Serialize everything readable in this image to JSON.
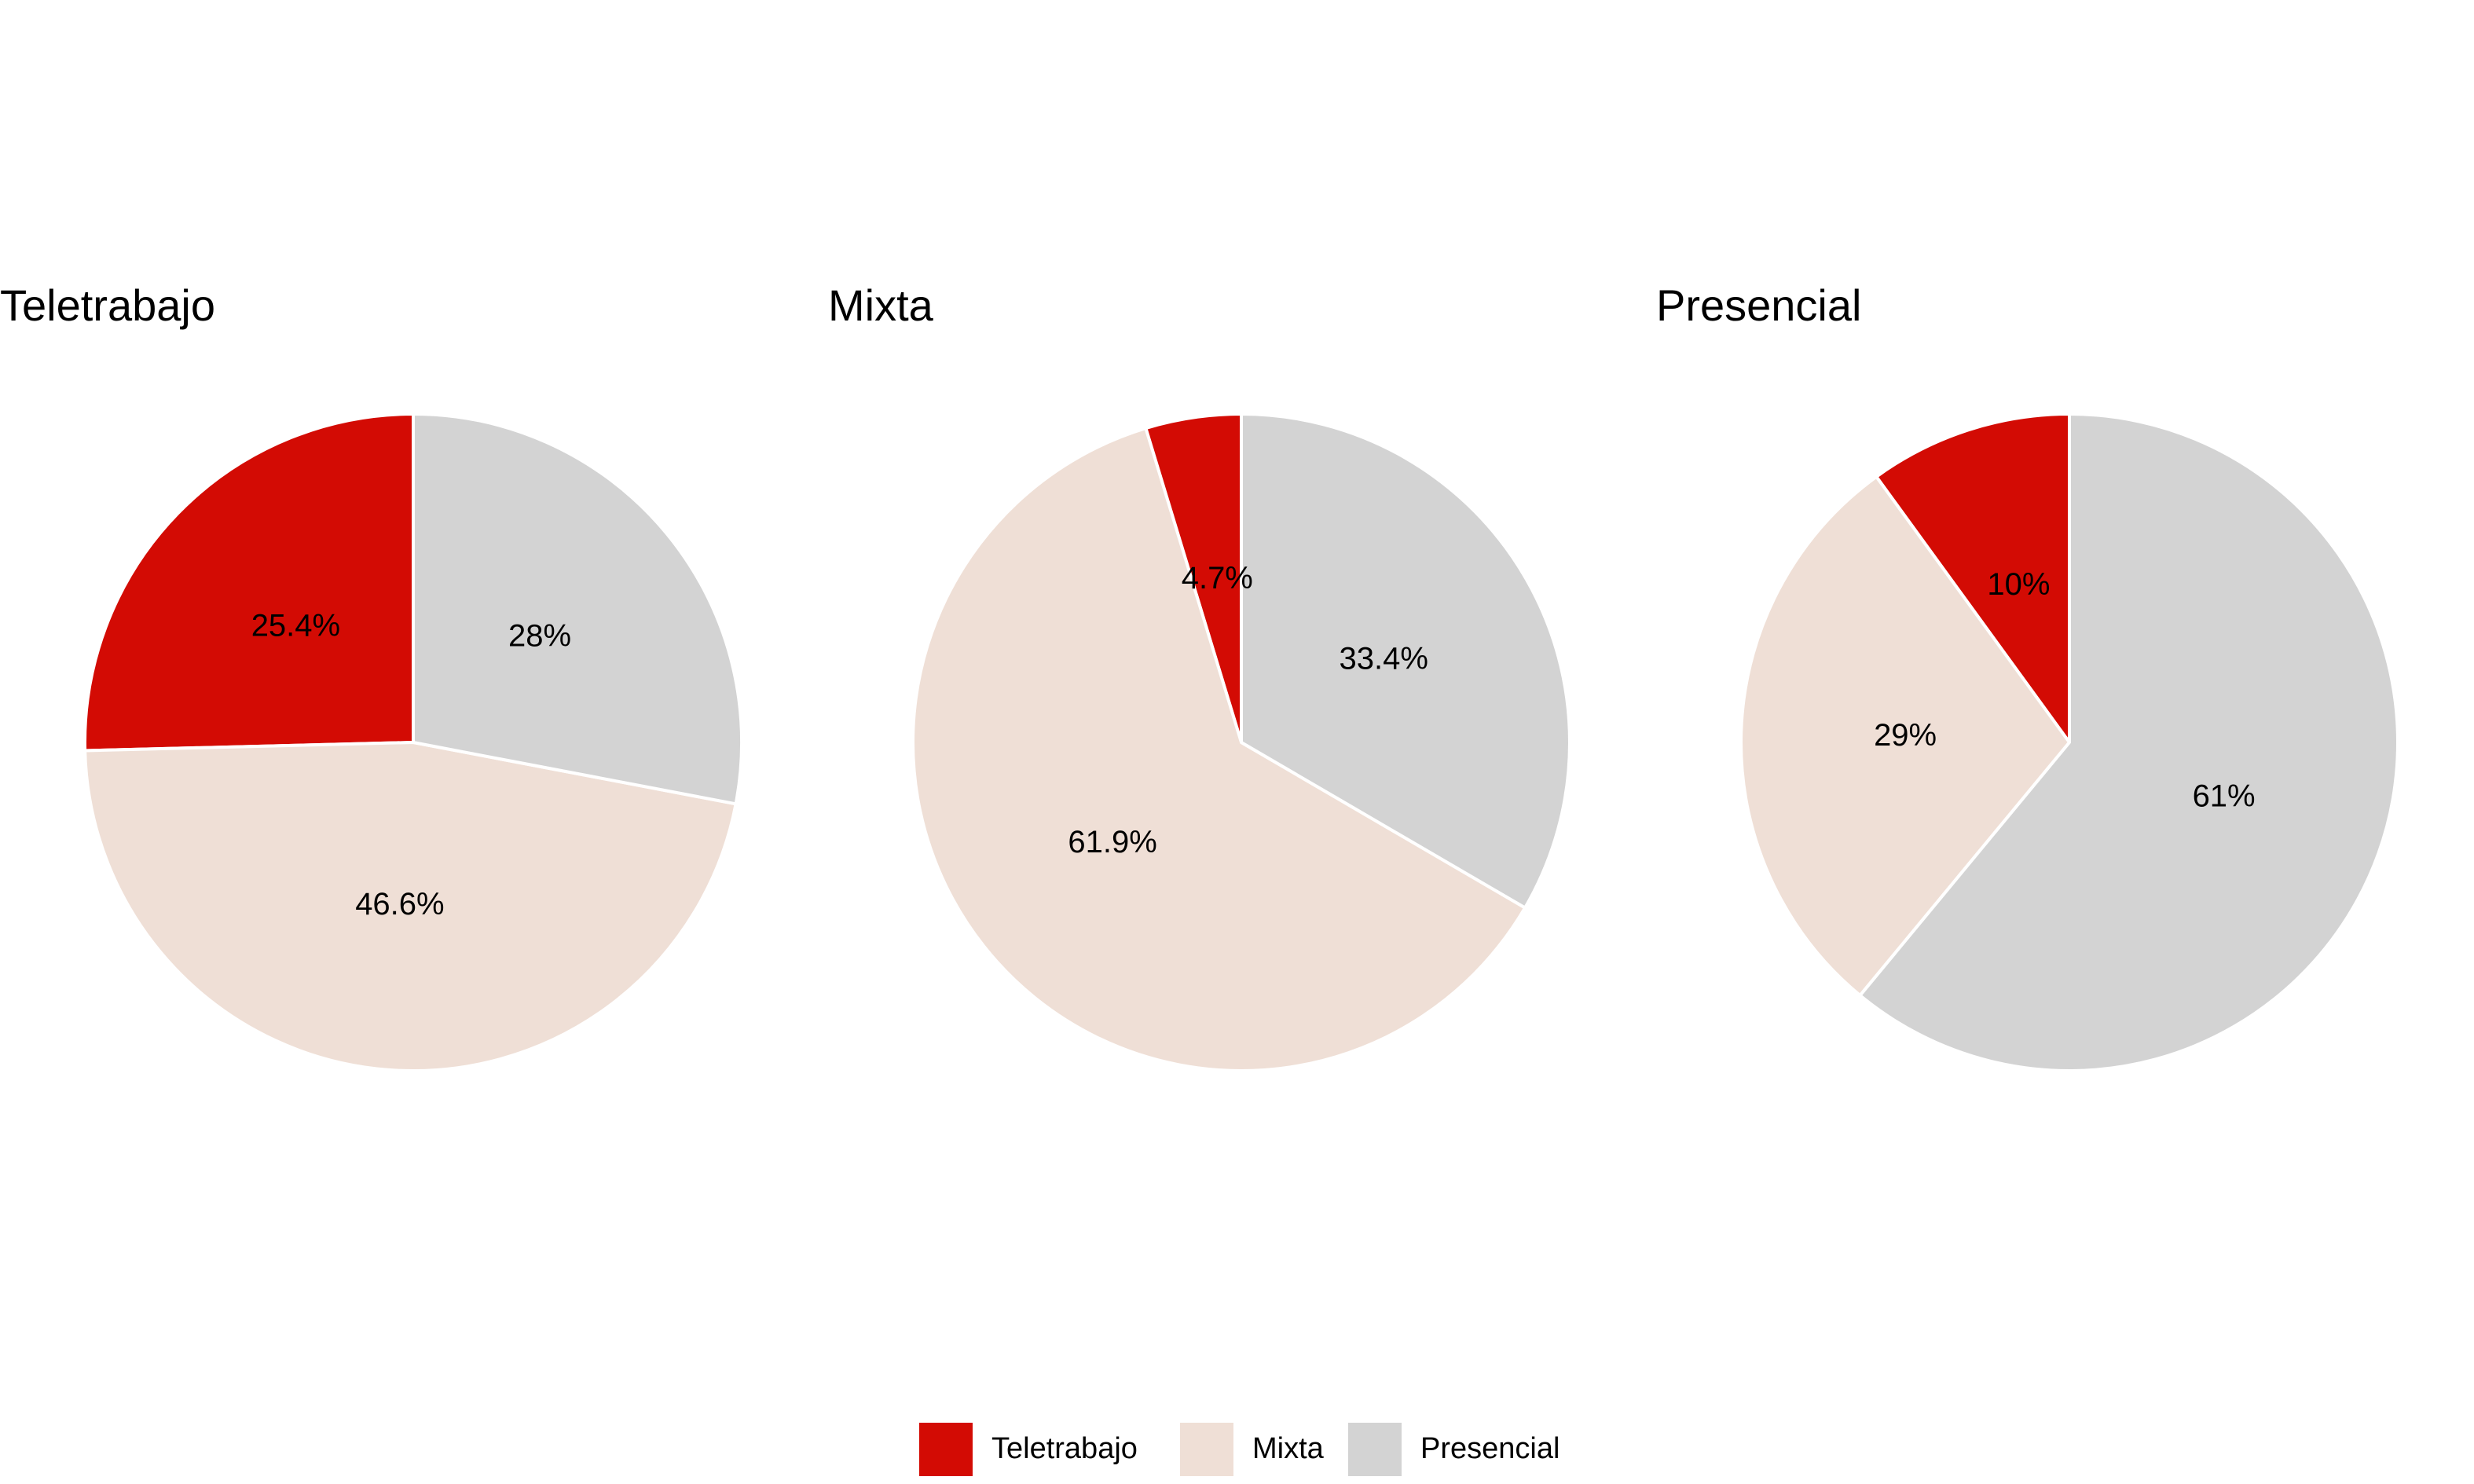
{
  "chart_data": [
    {
      "type": "pie",
      "title": "Teletrabajo",
      "categories": [
        "Teletrabajo",
        "Mixta",
        "Presencial"
      ],
      "values": [
        25.4,
        46.6,
        28.0
      ],
      "labels": [
        "25.4%",
        "46.6%",
        "28%"
      ]
    },
    {
      "type": "pie",
      "title": "Mixta",
      "categories": [
        "Teletrabajo",
        "Mixta",
        "Presencial"
      ],
      "values": [
        4.7,
        61.9,
        33.4
      ],
      "labels": [
        "4.7%",
        "61.9%",
        "33.4%"
      ]
    },
    {
      "type": "pie",
      "title": "Presencial",
      "categories": [
        "Teletrabajo",
        "Mixta",
        "Presencial"
      ],
      "values": [
        10.0,
        29.0,
        61.0
      ],
      "labels": [
        "10%",
        "29%",
        "61%"
      ]
    }
  ],
  "legend": {
    "placement": "bottom",
    "items": [
      {
        "label": "Teletrabajo",
        "color": "#d30b04"
      },
      {
        "label": "Mixta",
        "color": "#efdfd6"
      },
      {
        "label": "Presencial",
        "color": "#d3d3d3"
      }
    ]
  },
  "colors": {
    "Teletrabajo": "#d30b04",
    "Mixta": "#efdfd6",
    "Presencial": "#d3d3d3",
    "slice_border": "#ffffff"
  }
}
